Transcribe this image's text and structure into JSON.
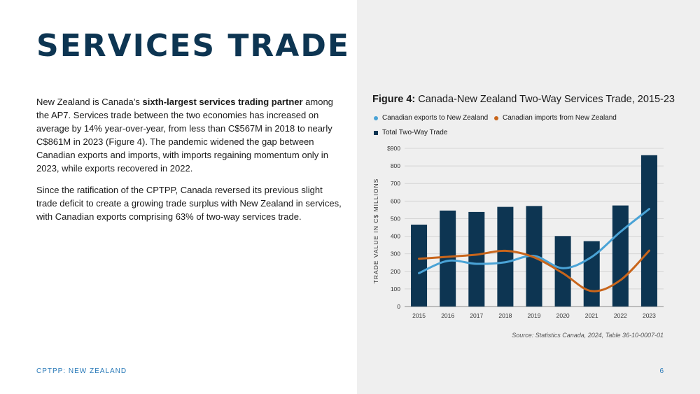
{
  "page": {
    "title": "SERVICES TRADE",
    "paragraph1": {
      "before": "New Zealand is Canada’s ",
      "bold": "sixth-largest services trading partner",
      "after": " among the AP7. Services trade between the two economies has increased on average by 14% year-over-year, from less than C$567M in 2018 to nearly C$861M in 2023 (Figure 4). The pandemic widened the gap between Canadian exports and imports, with imports regaining momentum only in 2023, while exports recovered in 2022."
    },
    "paragraph2": "Since the ratification of the CPTPP, Canada reversed its previous slight trade deficit to create a growing trade surplus with New Zealand in services, with Canadian exports comprising 63% of two-way services trade.",
    "footer_left": "CPTPP: NEW ZEALAND",
    "page_number": "6",
    "source": "Source: Statistics Canada, 2024, Table 36-10-0007-01"
  },
  "colors": {
    "bar": "#0d3552",
    "exports": "#4aa3d6",
    "imports": "#c8651b",
    "title": "#0d3552",
    "footer": "#2a7ab8"
  },
  "chart_data": {
    "type": "bar",
    "title_bold": "Figure 4:",
    "title": "Canada-New Zealand Two-Way Services Trade, 2015-23",
    "xlabel": "",
    "ylabel": "TRADE VALUE IN C$ MILLIONS",
    "ylim": [
      0,
      900
    ],
    "yticks": [
      0,
      100,
      200,
      300,
      400,
      500,
      600,
      700,
      800,
      900
    ],
    "ytick_labels": [
      "0",
      "100",
      "200",
      "300",
      "400",
      "500",
      "600",
      "700",
      "800",
      "$900"
    ],
    "grid": true,
    "categories": [
      "2015",
      "2016",
      "2017",
      "2018",
      "2019",
      "2020",
      "2021",
      "2022",
      "2023"
    ],
    "series": [
      {
        "name": "Total Two-Way Trade",
        "type": "bar",
        "values": [
          466,
          546,
          538,
          567,
          572,
          401,
          372,
          575,
          861
        ]
      },
      {
        "name": "Canadian exports to New Zealand",
        "type": "line",
        "values": [
          190,
          260,
          243,
          252,
          288,
          218,
          282,
          425,
          555
        ]
      },
      {
        "name": "Canadian imports from New Zealand",
        "type": "line",
        "values": [
          272,
          283,
          295,
          317,
          280,
          190,
          88,
          150,
          318
        ]
      }
    ]
  }
}
